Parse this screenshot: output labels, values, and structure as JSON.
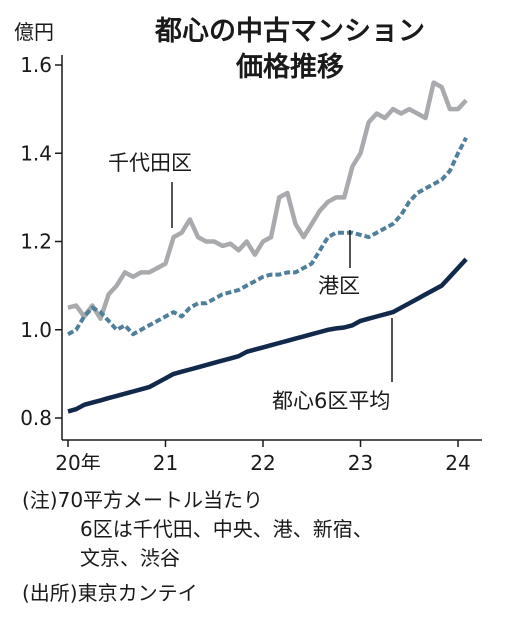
{
  "chart_data": {
    "type": "line",
    "title": "都心の中古マンション",
    "subtitle": "価格推移",
    "ylabel": "億円",
    "ylim": [
      0.8,
      1.6
    ],
    "yticks": [
      0.8,
      1.0,
      1.2,
      1.4,
      1.6
    ],
    "ytick_labels": [
      "0.8",
      "1.0",
      "1.2",
      "1.4",
      "1.6"
    ],
    "xlim": [
      2020.0,
      2024.25
    ],
    "xticks": [
      2020,
      2021,
      2022,
      2023,
      2024
    ],
    "xtick_labels": [
      "20年",
      "21",
      "22",
      "23",
      "24"
    ],
    "grid": false,
    "x_start": 2020.0,
    "x_step": 0.08333,
    "series": [
      {
        "name": "千代田区",
        "color": "#a8aaad",
        "style": "solid",
        "values": [
          1.05,
          1.055,
          1.03,
          1.055,
          1.025,
          1.08,
          1.1,
          1.13,
          1.12,
          1.13,
          1.13,
          1.14,
          1.15,
          1.21,
          1.22,
          1.25,
          1.21,
          1.2,
          1.2,
          1.19,
          1.195,
          1.18,
          1.2,
          1.17,
          1.2,
          1.21,
          1.3,
          1.31,
          1.24,
          1.21,
          1.24,
          1.27,
          1.29,
          1.3,
          1.3,
          1.37,
          1.4,
          1.47,
          1.49,
          1.48,
          1.5,
          1.49,
          1.5,
          1.49,
          1.48,
          1.56,
          1.55,
          1.5,
          1.5,
          1.52
        ]
      },
      {
        "name": "港区",
        "color": "#4f7f9b",
        "style": "dashed",
        "values": [
          0.99,
          1.0,
          1.03,
          1.05,
          1.04,
          1.02,
          1.0,
          1.01,
          0.99,
          1.0,
          1.01,
          1.02,
          1.03,
          1.04,
          1.03,
          1.05,
          1.06,
          1.06,
          1.07,
          1.08,
          1.085,
          1.09,
          1.1,
          1.11,
          1.12,
          1.125,
          1.125,
          1.13,
          1.13,
          1.14,
          1.15,
          1.18,
          1.21,
          1.22,
          1.22,
          1.22,
          1.215,
          1.21,
          1.22,
          1.23,
          1.24,
          1.26,
          1.29,
          1.31,
          1.32,
          1.33,
          1.34,
          1.36,
          1.4,
          1.435
        ]
      },
      {
        "name": "都心6区平均",
        "color": "#13294b",
        "style": "solid",
        "values": [
          0.815,
          0.82,
          0.83,
          0.835,
          0.84,
          0.845,
          0.85,
          0.855,
          0.86,
          0.865,
          0.87,
          0.88,
          0.89,
          0.9,
          0.905,
          0.91,
          0.915,
          0.92,
          0.925,
          0.93,
          0.935,
          0.94,
          0.95,
          0.955,
          0.96,
          0.965,
          0.97,
          0.975,
          0.98,
          0.985,
          0.99,
          0.995,
          1.0,
          1.003,
          1.005,
          1.01,
          1.02,
          1.025,
          1.03,
          1.035,
          1.04,
          1.05,
          1.06,
          1.07,
          1.08,
          1.09,
          1.1,
          1.12,
          1.14,
          1.16
        ]
      }
    ],
    "annotations": [
      {
        "text": "千代田区",
        "series": "千代田区"
      },
      {
        "text": "港区",
        "series": "港区"
      },
      {
        "text": "都心6区平均",
        "series": "都心6区平均"
      }
    ]
  },
  "notes": {
    "line1": "(注)70平方メートル当たり",
    "line2": "6区は千代田、中央、港、新宿、",
    "line3": "文京、渋谷",
    "source": "(出所)東京カンテイ"
  }
}
